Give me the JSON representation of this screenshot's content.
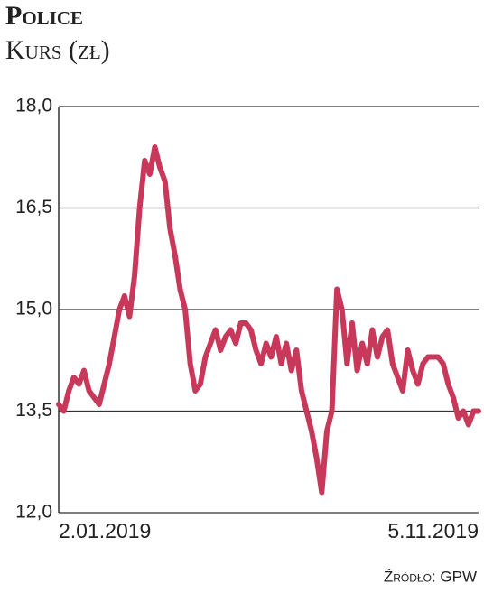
{
  "chart_data": {
    "type": "line",
    "title": "Police",
    "subtitle": "Kurs (zł)",
    "source": "Źródło: GPW",
    "categories": [
      "2.01.2019",
      null,
      null,
      null,
      null,
      null,
      null,
      null,
      null,
      null,
      null,
      null,
      null,
      null,
      null,
      null,
      null,
      null,
      null,
      null,
      null,
      null,
      null,
      null,
      null,
      null,
      null,
      null,
      null,
      null,
      null,
      null,
      null,
      null,
      null,
      null,
      null,
      null,
      null,
      null,
      null,
      null,
      null,
      null,
      null,
      null,
      null,
      null,
      null,
      null,
      null,
      null,
      null,
      null,
      null,
      null,
      null,
      null,
      null,
      null,
      null,
      null,
      null,
      null,
      null,
      null,
      null,
      null,
      null,
      null,
      null,
      null,
      null,
      null,
      null,
      null,
      null,
      null,
      null,
      null,
      null,
      null,
      null,
      "5.11.2019"
    ],
    "values": [
      13.6,
      13.5,
      13.8,
      14.0,
      13.9,
      14.1,
      13.8,
      13.7,
      13.6,
      13.9,
      14.2,
      14.6,
      15.0,
      15.2,
      14.9,
      15.5,
      16.5,
      17.2,
      17.0,
      17.4,
      17.1,
      16.9,
      16.2,
      15.8,
      15.3,
      15.0,
      14.2,
      13.8,
      13.9,
      14.3,
      14.5,
      14.7,
      14.4,
      14.6,
      14.7,
      14.5,
      14.8,
      14.8,
      14.7,
      14.4,
      14.2,
      14.5,
      14.3,
      14.6,
      14.2,
      14.5,
      14.1,
      14.4,
      13.8,
      13.5,
      13.2,
      12.8,
      12.3,
      13.2,
      13.5,
      15.3,
      15.0,
      14.2,
      14.8,
      14.1,
      14.5,
      14.2,
      14.7,
      14.3,
      14.6,
      14.7,
      14.2,
      14.0,
      13.8,
      14.4,
      14.1,
      13.9,
      14.2,
      14.3,
      14.3,
      14.3,
      14.2,
      13.9,
      13.7,
      13.4,
      13.5,
      13.3,
      13.5,
      13.5
    ],
    "color": "#c8385a",
    "ylim": [
      12,
      18
    ],
    "yticks": [
      {
        "value": 12,
        "label": "12,0"
      },
      {
        "value": 13.5,
        "label": "13,5"
      },
      {
        "value": 15,
        "label": "15,0"
      },
      {
        "value": 16.5,
        "label": "16,5"
      },
      {
        "value": 18,
        "label": "18,0"
      }
    ],
    "grid": true
  }
}
